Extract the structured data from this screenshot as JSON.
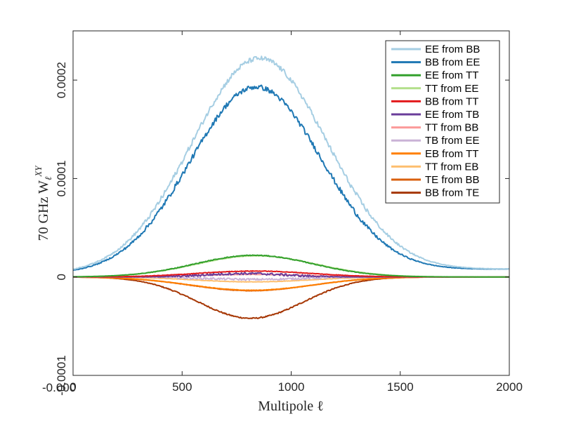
{
  "chart_data": {
    "type": "line",
    "xlabel": "Multipole ℓ",
    "ylabel_prefix": "70 GHz W",
    "ylabel_sub": "ℓ",
    "ylabel_sup": "XY",
    "xlim": [
      0,
      2000
    ],
    "ylim": [
      -0.0001,
      0.00025
    ],
    "xticks": [
      0,
      500,
      1000,
      1500,
      2000
    ],
    "xtick_labels": [
      "0",
      "500",
      "1000",
      "1500",
      "2000"
    ],
    "yticks": [
      -0.0001,
      0,
      0.0001,
      0.0002
    ],
    "ytick_labels": [
      "-0.0001",
      "0",
      "0.0001",
      "0.0002"
    ],
    "corner_label": "-0.000",
    "grid": false,
    "legend_position": "top-right",
    "series": [
      {
        "name": "EE from BB",
        "color": "#a6cee3",
        "peak": 0.000222,
        "center": 855,
        "width": 310,
        "base_left": 3e-06,
        "base_right": 8e-06,
        "noise": 2.5e-06
      },
      {
        "name": "BB from EE",
        "color": "#1f78b4",
        "peak": 0.000193,
        "center": 840,
        "width": 300,
        "base_left": 3e-06,
        "base_right": 8e-06,
        "noise": 2.5e-06
      },
      {
        "name": "EE from TT",
        "color": "#33a02c",
        "peak": 2.2e-05,
        "center": 830,
        "width": 270,
        "base_left": 0,
        "base_right": 0,
        "noise": 4e-07
      },
      {
        "name": "TT from EE",
        "color": "#b2df8a",
        "peak": 2.15e-05,
        "center": 840,
        "width": 275,
        "base_left": 0,
        "base_right": 0,
        "noise": 3e-07
      },
      {
        "name": "BB from TT",
        "color": "#e31a1c",
        "peak": 6e-06,
        "center": 830,
        "width": 260,
        "base_left": 0,
        "base_right": 0,
        "noise": 3e-07
      },
      {
        "name": "EE from TB",
        "color": "#6a3d9a",
        "peak": 3.5e-06,
        "center": 790,
        "width": 180,
        "base_left": 0,
        "base_right": 0,
        "noise": 1.2e-06
      },
      {
        "name": "TT from BB",
        "color": "#fb9a99",
        "peak": 2.5e-06,
        "center": 820,
        "width": 250,
        "base_left": 0,
        "base_right": 0,
        "noise": 2e-07
      },
      {
        "name": "TB from EE",
        "color": "#cab2d6",
        "peak": -2.5e-06,
        "center": 830,
        "width": 220,
        "base_left": 0,
        "base_right": 0,
        "noise": 1e-06
      },
      {
        "name": "EB from TT",
        "color": "#ff7f00",
        "peak": -1.35e-05,
        "center": 820,
        "width": 280,
        "base_left": 0,
        "base_right": 0,
        "noise": 2e-07
      },
      {
        "name": "TT from EB",
        "color": "#fdbf6f",
        "peak": -5e-06,
        "center": 820,
        "width": 260,
        "base_left": 0,
        "base_right": 0,
        "noise": 2e-07
      },
      {
        "name": "TE from BB",
        "color": "#d95f0e",
        "peak": -1.4e-05,
        "center": 815,
        "width": 275,
        "base_left": 0,
        "base_right": 0,
        "noise": 2e-07
      },
      {
        "name": "BB from TE",
        "color": "#a63603",
        "peak": -4.2e-05,
        "center": 815,
        "width": 240,
        "base_left": 0,
        "base_right": 0,
        "noise": 6e-07
      }
    ]
  }
}
